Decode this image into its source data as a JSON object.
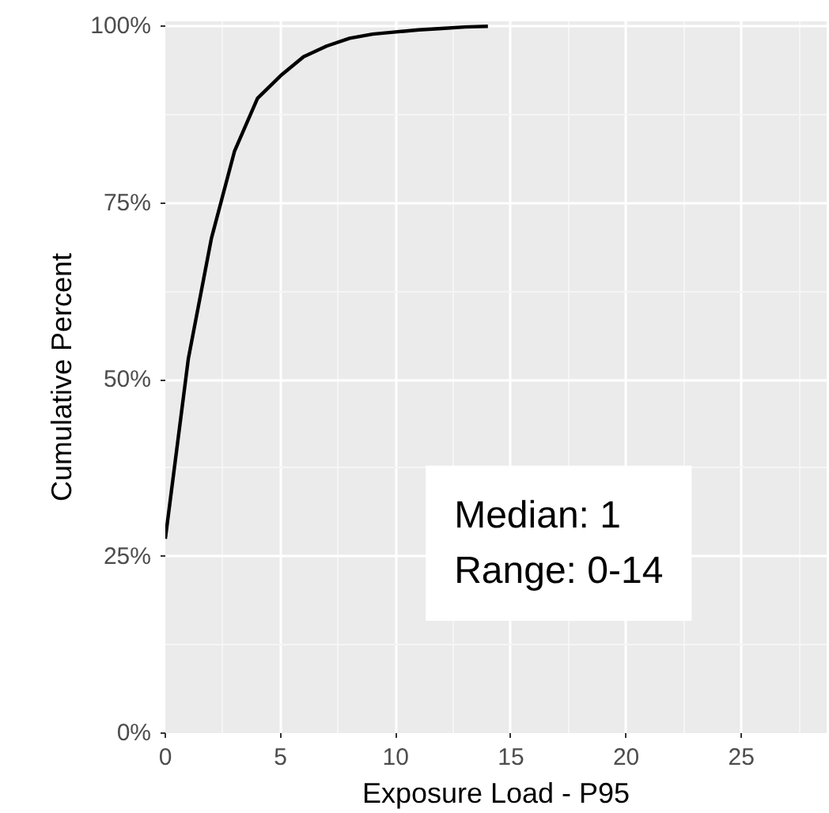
{
  "chart_data": {
    "type": "line",
    "xlabel": "Exposure Load - P95",
    "ylabel": "Cumulative Percent",
    "x": [
      0,
      1,
      2,
      3,
      4,
      5,
      6,
      7,
      8,
      9,
      10,
      11,
      12,
      13,
      14
    ],
    "series": [
      {
        "color": "#000000",
        "values": [
          27.5,
          53,
          70,
          82.3,
          89.8,
          93,
          95.7,
          97.2,
          98.3,
          98.9,
          99.2,
          99.5,
          99.7,
          99.9,
          100
        ]
      }
    ],
    "xlim": [
      0,
      28.7
    ],
    "ylim": [
      0,
      100.7
    ],
    "xticks": [
      0,
      5,
      10,
      15,
      20,
      25
    ],
    "yticks": [
      {
        "value": 0,
        "label": "0%"
      },
      {
        "value": 25,
        "label": "25%"
      },
      {
        "value": 50,
        "label": "50%"
      },
      {
        "value": 75,
        "label": "75%"
      },
      {
        "value": 100,
        "label": "100%"
      }
    ],
    "grid": true,
    "marker": "none",
    "line_style": "solid",
    "annotations": [
      "Median: 1",
      "Range: 0-14"
    ]
  }
}
